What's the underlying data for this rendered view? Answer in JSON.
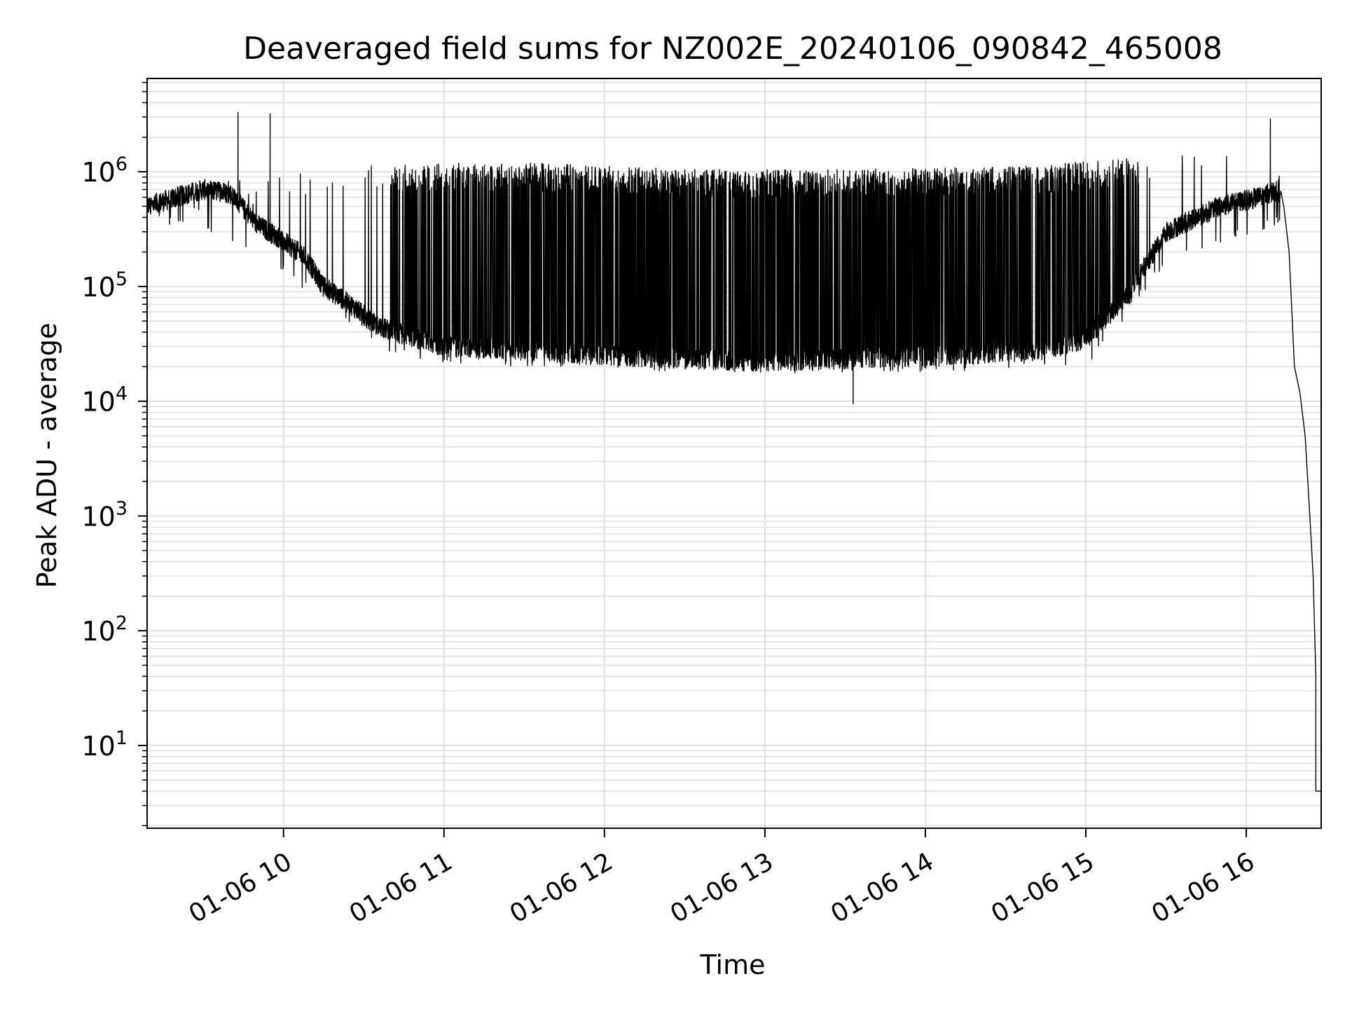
{
  "chart_data": {
    "type": "line",
    "title": "Deaveraged field sums for NZ002E_20240106_090842_465008",
    "xlabel": "Time",
    "ylabel": "Peak ADU - average",
    "yscale": "log",
    "ylim": [
      1.9,
      6500000
    ],
    "xlim": [
      "2024-01-06 09:09",
      "2024-01-06 16:28"
    ],
    "grid": true,
    "line_color": "#000000",
    "grid_color": "#e0e0e0",
    "x_ticks": [
      {
        "label": "01-06 10",
        "time": "2024-01-06 10:00"
      },
      {
        "label": "01-06 11",
        "time": "2024-01-06 11:00"
      },
      {
        "label": "01-06 12",
        "time": "2024-01-06 12:00"
      },
      {
        "label": "01-06 13",
        "time": "2024-01-06 13:00"
      },
      {
        "label": "01-06 14",
        "time": "2024-01-06 14:00"
      },
      {
        "label": "01-06 15",
        "time": "2024-01-06 15:00"
      },
      {
        "label": "01-06 16",
        "time": "2024-01-06 16:00"
      }
    ],
    "y_ticks": [
      {
        "base": "10",
        "exp": "1",
        "value": 10
      },
      {
        "base": "10",
        "exp": "2",
        "value": 100
      },
      {
        "base": "10",
        "exp": "3",
        "value": 1000
      },
      {
        "base": "10",
        "exp": "4",
        "value": 10000
      },
      {
        "base": "10",
        "exp": "5",
        "value": 100000
      },
      {
        "base": "10",
        "exp": "6",
        "value": 1000000
      }
    ],
    "series": [
      {
        "baseline_points": [
          {
            "time": "2024-01-06 09:09",
            "value": 500000
          },
          {
            "time": "2024-01-06 09:20",
            "value": 600000
          },
          {
            "time": "2024-01-06 09:30",
            "value": 700000
          },
          {
            "time": "2024-01-06 09:40",
            "value": 650000
          },
          {
            "time": "2024-01-06 09:50",
            "value": 350000
          },
          {
            "time": "2024-01-06 10:00",
            "value": 250000
          },
          {
            "time": "2024-01-06 10:08",
            "value": 180000
          },
          {
            "time": "2024-01-06 10:15",
            "value": 100000
          },
          {
            "time": "2024-01-06 10:25",
            "value": 70000
          },
          {
            "time": "2024-01-06 10:35",
            "value": 45000
          },
          {
            "time": "2024-01-06 10:45",
            "value": 38000
          },
          {
            "time": "2024-01-06 11:00",
            "value": 30000
          },
          {
            "time": "2024-01-06 11:30",
            "value": 28000
          },
          {
            "time": "2024-01-06 12:00",
            "value": 25000
          },
          {
            "time": "2024-01-06 13:00",
            "value": 22000
          },
          {
            "time": "2024-01-06 14:00",
            "value": 25000
          },
          {
            "time": "2024-01-06 14:45",
            "value": 28000
          },
          {
            "time": "2024-01-06 15:00",
            "value": 35000
          },
          {
            "time": "2024-01-06 15:15",
            "value": 80000
          },
          {
            "time": "2024-01-06 15:30",
            "value": 300000
          },
          {
            "time": "2024-01-06 15:50",
            "value": 500000
          },
          {
            "time": "2024-01-06 16:05",
            "value": 600000
          },
          {
            "time": "2024-01-06 16:12",
            "value": 700000
          },
          {
            "time": "2024-01-06 16:14",
            "value": 500000
          },
          {
            "time": "2024-01-06 16:16",
            "value": 200000
          },
          {
            "time": "2024-01-06 16:18",
            "value": 20000
          },
          {
            "time": "2024-01-06 16:20",
            "value": 12000
          },
          {
            "time": "2024-01-06 16:22",
            "value": 5000
          },
          {
            "time": "2024-01-06 16:24",
            "value": 800
          },
          {
            "time": "2024-01-06 16:25",
            "value": 300
          },
          {
            "time": "2024-01-06 16:26",
            "value": 40
          },
          {
            "time": "2024-01-06 16:26",
            "value": 4
          },
          {
            "time": "2024-01-06 16:28",
            "value": 4
          }
        ],
        "upper_envelope": [
          {
            "time": "2024-01-06 09:09",
            "value": 650000
          },
          {
            "time": "2024-01-06 09:50",
            "value": 900000
          },
          {
            "time": "2024-01-06 10:10",
            "value": 1100000
          },
          {
            "time": "2024-01-06 10:45",
            "value": 1200000
          },
          {
            "time": "2024-01-06 11:30",
            "value": 1200000
          },
          {
            "time": "2024-01-06 12:30",
            "value": 1050000
          },
          {
            "time": "2024-01-06 13:30",
            "value": 1050000
          },
          {
            "time": "2024-01-06 14:30",
            "value": 1100000
          },
          {
            "time": "2024-01-06 15:15",
            "value": 1300000
          },
          {
            "time": "2024-01-06 15:40",
            "value": 1600000
          },
          {
            "time": "2024-01-06 16:05",
            "value": 1200000
          },
          {
            "time": "2024-01-06 16:12",
            "value": 1000000
          }
        ],
        "lower_envelope": [
          {
            "time": "2024-01-06 09:09",
            "value": 400000
          },
          {
            "time": "2024-01-06 09:50",
            "value": 200000
          },
          {
            "time": "2024-01-06 10:15",
            "value": 70000
          },
          {
            "time": "2024-01-06 10:40",
            "value": 27000
          },
          {
            "time": "2024-01-06 11:00",
            "value": 21000
          },
          {
            "time": "2024-01-06 12:00",
            "value": 19000
          },
          {
            "time": "2024-01-06 13:00",
            "value": 17000
          },
          {
            "time": "2024-01-06 14:00",
            "value": 18000
          },
          {
            "time": "2024-01-06 15:00",
            "value": 20000
          },
          {
            "time": "2024-01-06 15:30",
            "value": 150000
          },
          {
            "time": "2024-01-06 16:00",
            "value": 280000
          },
          {
            "time": "2024-01-06 16:12",
            "value": 350000
          }
        ],
        "notable_peaks": [
          {
            "time": "2024-01-06 09:43",
            "value": 3300000
          },
          {
            "time": "2024-01-06 09:55",
            "value": 3200000
          },
          {
            "time": "2024-01-06 16:09",
            "value": 2900000
          }
        ],
        "notable_minimum": {
          "time": "2024-01-06 13:33",
          "value": 9500
        }
      }
    ]
  }
}
